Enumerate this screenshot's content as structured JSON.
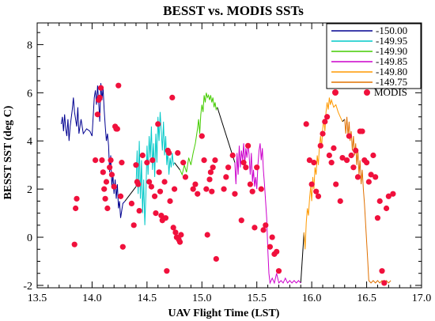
{
  "chart_data": {
    "type": "line",
    "title": "BESST vs. MODIS SSTs",
    "xlabel": "UAV Flight Time (LST)",
    "ylabel": "BESST SST (deg C)",
    "xlim": [
      13.5,
      17.0
    ],
    "ylim": [
      -2.1,
      8.9
    ],
    "xticks": [
      "13.5",
      "14.0",
      "14.5",
      "15.0",
      "15.5",
      "16.0",
      "16.5",
      "17.0"
    ],
    "yticks": [
      "-2",
      "0",
      "2",
      "4",
      "6",
      "8"
    ],
    "grid": false,
    "legend_position": "top-right",
    "connector_color": "#000000",
    "series": [
      {
        "name": "-150.00",
        "color": "#000090",
        "x_start": 13.72,
        "x_end": 14.3
      },
      {
        "name": "-149.95",
        "color": "#00c8c8",
        "x_start": 14.4,
        "x_end": 14.75
      },
      {
        "name": "-149.90",
        "color": "#44cc00",
        "x_start": 14.8,
        "x_end": 15.14
      },
      {
        "name": "-149.85",
        "color": "#cc00cc",
        "x_start": 15.3,
        "x_end": 15.9
      },
      {
        "name": "-149.80",
        "color": "#ff9900",
        "x_start": 15.93,
        "x_end": 16.28
      },
      {
        "name": "-149.75",
        "color": "#e07000",
        "x_start": 16.3,
        "x_end": 16.72
      }
    ],
    "series_points": [
      [
        [
          13.72,
          4.7
        ],
        [
          13.73,
          5.0
        ],
        [
          13.74,
          4.4
        ],
        [
          13.75,
          5.1
        ],
        [
          13.76,
          4.5
        ],
        [
          13.77,
          4.2
        ],
        [
          13.78,
          4.9
        ],
        [
          13.79,
          4.0
        ],
        [
          13.8,
          4.6
        ],
        [
          13.82,
          5.3
        ],
        [
          13.83,
          5.8
        ],
        [
          13.84,
          5.2
        ],
        [
          13.86,
          4.6
        ],
        [
          13.87,
          5.4
        ],
        [
          13.88,
          4.3
        ],
        [
          13.9,
          4.9
        ],
        [
          13.92,
          4.3
        ],
        [
          13.95,
          4.5
        ],
        [
          13.98,
          4.4
        ],
        [
          14.0,
          4.2
        ],
        [
          14.01,
          5.0
        ],
        [
          14.02,
          5.8
        ],
        [
          14.03,
          6.1
        ],
        [
          14.04,
          5.5
        ],
        [
          14.05,
          6.3
        ],
        [
          14.06,
          5.6
        ],
        [
          14.07,
          4.8
        ],
        [
          14.08,
          6.4
        ],
        [
          14.09,
          5.7
        ],
        [
          14.1,
          6.2
        ],
        [
          14.11,
          5.3
        ],
        [
          14.12,
          4.6
        ],
        [
          14.13,
          4.0
        ],
        [
          14.14,
          4.3
        ],
        [
          14.15,
          3.8
        ],
        [
          14.16,
          2.7
        ],
        [
          14.17,
          3.4
        ],
        [
          14.18,
          2.1
        ],
        [
          14.19,
          2.6
        ],
        [
          14.2,
          1.8
        ],
        [
          14.21,
          2.4
        ],
        [
          14.22,
          1.6
        ],
        [
          14.23,
          2.2
        ],
        [
          14.24,
          1.2
        ],
        [
          14.25,
          1.5
        ],
        [
          14.26,
          0.8
        ],
        [
          14.27,
          1.1
        ],
        [
          14.28,
          1.4
        ],
        [
          14.3,
          1.5
        ]
      ],
      [
        [
          14.4,
          2.1
        ],
        [
          14.41,
          3.6
        ],
        [
          14.42,
          1.8
        ],
        [
          14.43,
          4.0
        ],
        [
          14.44,
          1.6
        ],
        [
          14.45,
          3.2
        ],
        [
          14.46,
          1.0
        ],
        [
          14.47,
          2.4
        ],
        [
          14.48,
          0.5
        ],
        [
          14.49,
          1.8
        ],
        [
          14.5,
          3.8
        ],
        [
          14.51,
          2.6
        ],
        [
          14.52,
          4.2
        ],
        [
          14.53,
          3.3
        ],
        [
          14.54,
          4.6
        ],
        [
          14.55,
          2.8
        ],
        [
          14.56,
          3.9
        ],
        [
          14.57,
          2.5
        ],
        [
          14.58,
          4.3
        ],
        [
          14.59,
          3.1
        ],
        [
          14.6,
          5.0
        ],
        [
          14.61,
          4.0
        ],
        [
          14.62,
          5.2
        ],
        [
          14.63,
          4.4
        ],
        [
          14.64,
          3.6
        ],
        [
          14.65,
          4.8
        ],
        [
          14.66,
          3.4
        ],
        [
          14.67,
          4.2
        ],
        [
          14.68,
          3.0
        ],
        [
          14.69,
          3.6
        ],
        [
          14.7,
          2.6
        ],
        [
          14.71,
          3.3
        ],
        [
          14.72,
          2.9
        ],
        [
          14.73,
          3.5
        ],
        [
          14.74,
          3.0
        ],
        [
          14.75,
          3.1
        ]
      ],
      [
        [
          14.8,
          2.8
        ],
        [
          14.82,
          2.6
        ],
        [
          14.84,
          3.0
        ],
        [
          14.86,
          2.7
        ],
        [
          14.88,
          3.3
        ],
        [
          14.9,
          3.0
        ],
        [
          14.92,
          3.5
        ],
        [
          14.94,
          3.9
        ],
        [
          14.96,
          4.5
        ],
        [
          14.97,
          4.9
        ],
        [
          14.98,
          4.3
        ],
        [
          14.99,
          5.1
        ],
        [
          15.0,
          5.5
        ],
        [
          15.01,
          5.2
        ],
        [
          15.02,
          5.9
        ],
        [
          15.03,
          5.6
        ],
        [
          15.04,
          6.0
        ],
        [
          15.05,
          5.8
        ],
        [
          15.06,
          5.9
        ],
        [
          15.07,
          5.7
        ],
        [
          15.08,
          5.9
        ],
        [
          15.09,
          5.6
        ],
        [
          15.1,
          5.8
        ],
        [
          15.11,
          5.4
        ],
        [
          15.12,
          5.6
        ],
        [
          15.13,
          5.3
        ],
        [
          15.14,
          5.4
        ]
      ],
      [
        [
          15.3,
          3.1
        ],
        [
          15.31,
          2.2
        ],
        [
          15.32,
          3.5
        ],
        [
          15.33,
          2.6
        ],
        [
          15.34,
          3.8
        ],
        [
          15.35,
          2.9
        ],
        [
          15.36,
          3.6
        ],
        [
          15.37,
          3.2
        ],
        [
          15.38,
          3.9
        ],
        [
          15.39,
          3.0
        ],
        [
          15.4,
          3.7
        ],
        [
          15.41,
          3.3
        ],
        [
          15.42,
          3.9
        ],
        [
          15.43,
          3.4
        ],
        [
          15.44,
          2.6
        ],
        [
          15.45,
          3.5
        ],
        [
          15.46,
          2.3
        ],
        [
          15.47,
          2.8
        ],
        [
          15.48,
          2.1
        ],
        [
          15.49,
          2.5
        ],
        [
          15.5,
          2.0
        ],
        [
          15.51,
          3.0
        ],
        [
          15.52,
          3.6
        ],
        [
          15.53,
          3.9
        ],
        [
          15.54,
          3.2
        ],
        [
          15.55,
          3.7
        ],
        [
          15.56,
          2.8
        ],
        [
          15.57,
          2.2
        ],
        [
          15.58,
          1.5
        ],
        [
          15.59,
          0.8
        ],
        [
          15.6,
          -0.5
        ],
        [
          15.61,
          -1.5
        ],
        [
          15.62,
          -1.9
        ],
        [
          15.64,
          -1.7
        ],
        [
          15.66,
          -1.9
        ],
        [
          15.68,
          -1.5
        ],
        [
          15.7,
          -1.9
        ],
        [
          15.72,
          -1.8
        ],
        [
          15.74,
          -1.9
        ],
        [
          15.76,
          -1.7
        ],
        [
          15.78,
          -1.9
        ],
        [
          15.8,
          -1.8
        ],
        [
          15.82,
          -1.9
        ],
        [
          15.84,
          -1.8
        ],
        [
          15.86,
          -1.9
        ],
        [
          15.88,
          -1.8
        ],
        [
          15.9,
          -1.9
        ]
      ],
      [
        [
          15.93,
          0.2
        ],
        [
          15.94,
          -0.5
        ],
        [
          15.95,
          0.6
        ],
        [
          15.96,
          1.2
        ],
        [
          15.97,
          0.9
        ],
        [
          15.98,
          1.6
        ],
        [
          15.99,
          2.1
        ],
        [
          16.0,
          1.5
        ],
        [
          16.01,
          2.5
        ],
        [
          16.02,
          2.0
        ],
        [
          16.03,
          2.9
        ],
        [
          16.04,
          2.6
        ],
        [
          16.05,
          3.4
        ],
        [
          16.06,
          3.0
        ],
        [
          16.07,
          3.8
        ],
        [
          16.08,
          4.2
        ],
        [
          16.09,
          3.7
        ],
        [
          16.1,
          4.5
        ],
        [
          16.11,
          4.9
        ],
        [
          16.12,
          4.4
        ],
        [
          16.13,
          5.2
        ],
        [
          16.14,
          5.6
        ],
        [
          16.15,
          5.3
        ],
        [
          16.16,
          5.8
        ],
        [
          16.17,
          5.5
        ],
        [
          16.18,
          5.7
        ],
        [
          16.2,
          5.4
        ],
        [
          16.22,
          5.5
        ],
        [
          16.24,
          5.2
        ],
        [
          16.26,
          5.0
        ],
        [
          16.28,
          4.8
        ]
      ],
      [
        [
          16.3,
          4.9
        ],
        [
          16.31,
          4.3
        ],
        [
          16.32,
          5.0
        ],
        [
          16.33,
          4.2
        ],
        [
          16.34,
          4.8
        ],
        [
          16.35,
          4.0
        ],
        [
          16.36,
          4.4
        ],
        [
          16.37,
          3.6
        ],
        [
          16.38,
          4.2
        ],
        [
          16.39,
          3.4
        ],
        [
          16.4,
          3.9
        ],
        [
          16.41,
          3.0
        ],
        [
          16.42,
          3.6
        ],
        [
          16.43,
          2.6
        ],
        [
          16.44,
          3.2
        ],
        [
          16.45,
          2.2
        ],
        [
          16.46,
          2.8
        ],
        [
          16.47,
          2.0
        ],
        [
          16.48,
          1.4
        ],
        [
          16.49,
          0.6
        ],
        [
          16.5,
          -0.2
        ],
        [
          16.51,
          -1.0
        ],
        [
          16.52,
          -1.8
        ],
        [
          16.54,
          -1.9
        ],
        [
          16.56,
          -1.8
        ],
        [
          16.58,
          -1.9
        ],
        [
          16.6,
          -1.8
        ],
        [
          16.62,
          -1.9
        ],
        [
          16.64,
          -1.8
        ],
        [
          16.66,
          -1.9
        ],
        [
          16.68,
          -1.8
        ],
        [
          16.7,
          -1.9
        ],
        [
          16.72,
          -1.8
        ]
      ]
    ],
    "modis": {
      "name": "MODIS",
      "color": "#f0103c",
      "points": [
        [
          13.84,
          -0.3
        ],
        [
          13.85,
          1.2
        ],
        [
          13.86,
          1.6
        ],
        [
          14.03,
          3.2
        ],
        [
          14.05,
          5.1
        ],
        [
          14.06,
          5.7
        ],
        [
          14.07,
          5.8
        ],
        [
          14.08,
          6.2
        ],
        [
          14.09,
          3.2
        ],
        [
          14.1,
          2.7
        ],
        [
          14.11,
          2.0
        ],
        [
          14.12,
          1.6
        ],
        [
          14.13,
          2.3
        ],
        [
          14.14,
          1.2
        ],
        [
          14.16,
          2.9
        ],
        [
          14.17,
          3.2
        ],
        [
          14.18,
          2.6
        ],
        [
          14.2,
          2.1
        ],
        [
          14.21,
          4.6
        ],
        [
          14.22,
          4.5
        ],
        [
          14.23,
          4.5
        ],
        [
          14.24,
          6.3
        ],
        [
          14.26,
          1.7
        ],
        [
          14.27,
          3.1
        ],
        [
          14.28,
          -0.4
        ],
        [
          14.36,
          1.4
        ],
        [
          14.38,
          0.5
        ],
        [
          14.4,
          3.0
        ],
        [
          14.41,
          2.3
        ],
        [
          14.42,
          2.2
        ],
        [
          14.43,
          1.1
        ],
        [
          14.46,
          3.4
        ],
        [
          14.5,
          3.1
        ],
        [
          14.52,
          2.3
        ],
        [
          14.54,
          2.1
        ],
        [
          14.55,
          3.2
        ],
        [
          14.57,
          1.7
        ],
        [
          14.58,
          1.0
        ],
        [
          14.6,
          4.7
        ],
        [
          14.61,
          2.7
        ],
        [
          14.62,
          1.9
        ],
        [
          14.63,
          0.9
        ],
        [
          14.64,
          0.7
        ],
        [
          14.66,
          2.3
        ],
        [
          14.67,
          0.8
        ],
        [
          14.68,
          -1.4
        ],
        [
          14.69,
          3.6
        ],
        [
          14.7,
          3.5
        ],
        [
          14.71,
          1.5
        ],
        [
          14.73,
          5.8
        ],
        [
          14.74,
          0.4
        ],
        [
          14.75,
          2.0
        ],
        [
          14.76,
          0.2
        ],
        [
          14.77,
          0.0
        ],
        [
          14.78,
          3.5
        ],
        [
          14.79,
          -0.1
        ],
        [
          14.8,
          -0.2
        ],
        [
          14.81,
          0.1
        ],
        [
          14.83,
          3.1
        ],
        [
          14.85,
          2.5
        ],
        [
          14.92,
          2.0
        ],
        [
          14.94,
          2.2
        ],
        [
          14.96,
          1.8
        ],
        [
          15.0,
          4.2
        ],
        [
          15.02,
          3.2
        ],
        [
          15.04,
          2.0
        ],
        [
          15.05,
          0.1
        ],
        [
          15.07,
          2.4
        ],
        [
          15.08,
          2.7
        ],
        [
          15.09,
          1.9
        ],
        [
          15.1,
          2.9
        ],
        [
          15.12,
          3.2
        ],
        [
          15.13,
          -0.9
        ],
        [
          15.2,
          2.0
        ],
        [
          15.22,
          2.5
        ],
        [
          15.24,
          2.9
        ],
        [
          15.28,
          3.4
        ],
        [
          15.3,
          1.8
        ],
        [
          15.36,
          0.7
        ],
        [
          15.38,
          3.1
        ],
        [
          15.4,
          2.9
        ],
        [
          15.42,
          3.8
        ],
        [
          15.44,
          2.2
        ],
        [
          15.46,
          1.9
        ],
        [
          15.48,
          0.4
        ],
        [
          15.5,
          2.9
        ],
        [
          15.54,
          2.0
        ],
        [
          15.56,
          0.3
        ],
        [
          15.58,
          0.5
        ],
        [
          15.62,
          -0.4
        ],
        [
          15.64,
          0.0
        ],
        [
          15.66,
          -0.7
        ],
        [
          15.68,
          -0.6
        ],
        [
          15.7,
          -1.4
        ],
        [
          15.95,
          4.7
        ],
        [
          15.98,
          3.2
        ],
        [
          16.0,
          2.2
        ],
        [
          16.02,
          3.1
        ],
        [
          16.04,
          1.9
        ],
        [
          16.06,
          1.7
        ],
        [
          16.08,
          3.8
        ],
        [
          16.1,
          4.3
        ],
        [
          16.12,
          4.8
        ],
        [
          16.14,
          5.0
        ],
        [
          16.16,
          3.4
        ],
        [
          16.18,
          3.1
        ],
        [
          16.2,
          3.7
        ],
        [
          16.22,
          2.2
        ],
        [
          16.26,
          1.5
        ],
        [
          16.28,
          3.3
        ],
        [
          16.32,
          3.2
        ],
        [
          16.34,
          4.2
        ],
        [
          16.36,
          3.4
        ],
        [
          16.38,
          2.9
        ],
        [
          16.4,
          3.6
        ],
        [
          16.42,
          2.5
        ],
        [
          16.44,
          4.4
        ],
        [
          16.46,
          4.4
        ],
        [
          16.48,
          3.2
        ],
        [
          16.5,
          3.1
        ],
        [
          16.52,
          2.3
        ],
        [
          16.54,
          2.6
        ],
        [
          16.56,
          3.4
        ],
        [
          16.58,
          2.5
        ],
        [
          16.6,
          0.8
        ],
        [
          16.62,
          1.5
        ],
        [
          16.64,
          -1.4
        ],
        [
          16.66,
          -1.9
        ],
        [
          16.68,
          1.2
        ],
        [
          16.7,
          1.7
        ],
        [
          16.74,
          1.8
        ]
      ]
    }
  }
}
